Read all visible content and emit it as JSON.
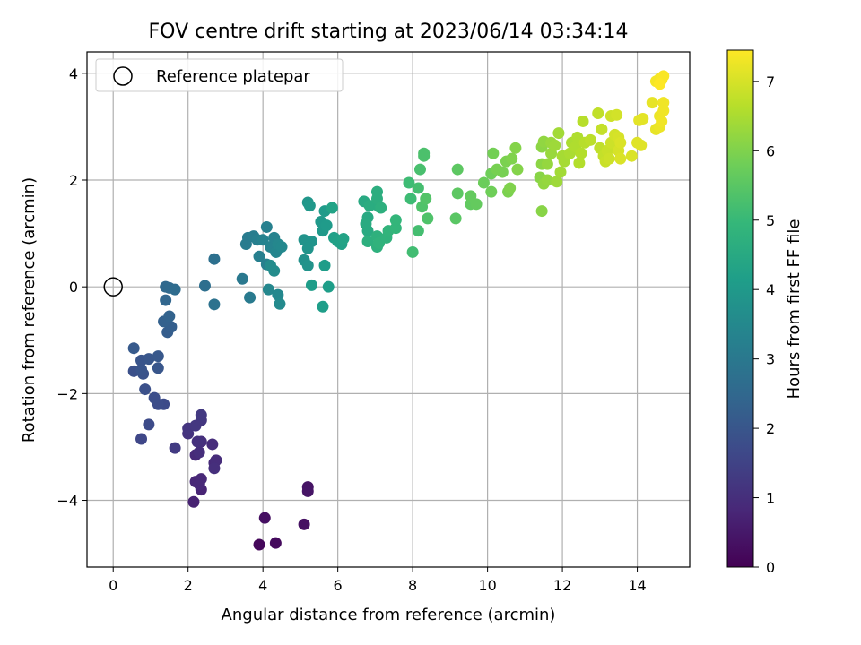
{
  "chart_data": {
    "type": "scatter",
    "title": "FOV centre drift starting at 2023/06/14 03:34:14",
    "xlabel": "Angular distance from reference (arcmin)",
    "ylabel": "Rotation from reference (arcmin)",
    "xlim": [
      -0.7,
      15.4
    ],
    "ylim": [
      -5.25,
      4.4
    ],
    "xticks": [
      0,
      2,
      4,
      6,
      8,
      10,
      12,
      14
    ],
    "yticks": [
      -4,
      -2,
      0,
      2,
      4
    ],
    "grid": true,
    "legend": {
      "position": "top-left",
      "entries": [
        "Reference platepar"
      ]
    },
    "reference_point": {
      "x": 0,
      "y": 0
    },
    "colorbar": {
      "label": "Hours from first FF file",
      "range": [
        0,
        7.45
      ],
      "ticks": [
        0,
        1,
        2,
        3,
        4,
        5,
        6,
        7
      ],
      "colormap": "viridis",
      "colors": [
        "#440154",
        "#482878",
        "#3e4989",
        "#31688e",
        "#26828e",
        "#1f9e89",
        "#35b779",
        "#6ece58",
        "#b5de2b",
        "#fde725"
      ]
    },
    "points": [
      [
        3.9,
        -4.83,
        0.15
      ],
      [
        4.34,
        -4.8,
        0.2
      ],
      [
        4.05,
        -4.33,
        0.3
      ],
      [
        5.1,
        -4.45,
        0.35
      ],
      [
        5.2,
        -3.75,
        0.4
      ],
      [
        5.2,
        -3.83,
        0.42
      ],
      [
        2.15,
        -4.03,
        0.7
      ],
      [
        2.35,
        -3.8,
        0.75
      ],
      [
        2.2,
        -3.65,
        0.8
      ],
      [
        2.3,
        -3.7,
        0.82
      ],
      [
        2.35,
        -3.6,
        0.85
      ],
      [
        2.2,
        -3.15,
        0.9
      ],
      [
        2.3,
        -3.1,
        1.0
      ],
      [
        2.35,
        -2.9,
        1.0
      ],
      [
        2.25,
        -2.9,
        1.05
      ],
      [
        2.65,
        -2.95,
        0.95
      ],
      [
        2.7,
        -3.3,
        0.9
      ],
      [
        2.75,
        -3.25,
        0.95
      ],
      [
        2.7,
        -3.4,
        1.0
      ],
      [
        2.0,
        -2.75,
        1.1
      ],
      [
        2.0,
        -2.65,
        1.15
      ],
      [
        2.2,
        -2.6,
        1.2
      ],
      [
        2.35,
        -2.5,
        1.2
      ],
      [
        2.35,
        -2.4,
        1.25
      ],
      [
        1.65,
        -3.02,
        1.3
      ],
      [
        0.75,
        -2.85,
        1.6
      ],
      [
        0.95,
        -2.58,
        1.7
      ],
      [
        1.35,
        -2.2,
        1.7
      ],
      [
        1.2,
        -2.2,
        1.75
      ],
      [
        1.1,
        -2.08,
        1.8
      ],
      [
        0.85,
        -1.92,
        1.85
      ],
      [
        0.55,
        -1.58,
        1.85
      ],
      [
        0.8,
        -1.63,
        1.9
      ],
      [
        0.75,
        -1.55,
        1.95
      ],
      [
        0.75,
        -1.38,
        1.95
      ],
      [
        0.95,
        -1.35,
        2.0
      ],
      [
        1.2,
        -1.52,
        2.0
      ],
      [
        1.2,
        -1.3,
        2.05
      ],
      [
        0.55,
        -1.15,
        2.1
      ],
      [
        1.45,
        -0.85,
        2.2
      ],
      [
        1.55,
        -0.75,
        2.25
      ],
      [
        1.35,
        -0.65,
        2.3
      ],
      [
        1.5,
        -0.55,
        2.35
      ],
      [
        1.4,
        -0.25,
        2.45
      ],
      [
        1.4,
        0.0,
        2.5
      ],
      [
        1.5,
        -0.02,
        2.55
      ],
      [
        1.65,
        -0.05,
        2.6
      ],
      [
        2.45,
        0.02,
        2.7
      ],
      [
        2.7,
        -0.33,
        2.8
      ],
      [
        2.7,
        0.52,
        2.75
      ],
      [
        3.45,
        0.15,
        3.0
      ],
      [
        3.65,
        -0.2,
        3.05
      ],
      [
        3.55,
        0.8,
        3.1
      ],
      [
        3.6,
        0.92,
        3.1
      ],
      [
        3.75,
        0.95,
        3.15
      ],
      [
        3.85,
        0.88,
        3.2
      ],
      [
        3.9,
        0.57,
        3.2
      ],
      [
        4.1,
        0.42,
        3.25
      ],
      [
        4.1,
        1.12,
        3.25
      ],
      [
        4.0,
        0.88,
        3.3
      ],
      [
        4.2,
        0.75,
        3.35
      ],
      [
        4.3,
        0.92,
        3.35
      ],
      [
        4.35,
        0.65,
        3.4
      ],
      [
        4.4,
        0.8,
        3.45
      ],
      [
        4.5,
        0.75,
        3.5
      ],
      [
        4.15,
        -0.05,
        3.45
      ],
      [
        4.4,
        -0.15,
        3.5
      ],
      [
        4.45,
        -0.32,
        3.55
      ],
      [
        4.3,
        0.3,
        3.6
      ],
      [
        4.2,
        0.4,
        3.6
      ],
      [
        5.1,
        0.5,
        3.75
      ],
      [
        5.2,
        0.4,
        3.8
      ],
      [
        5.1,
        0.88,
        3.8
      ],
      [
        5.3,
        0.85,
        3.85
      ],
      [
        5.2,
        0.72,
        3.85
      ],
      [
        5.2,
        1.58,
        3.9
      ],
      [
        5.25,
        1.52,
        3.95
      ],
      [
        5.55,
        1.22,
        4.0
      ],
      [
        5.6,
        1.05,
        4.0
      ],
      [
        5.7,
        1.15,
        4.05
      ],
      [
        5.65,
        1.42,
        4.05
      ],
      [
        5.65,
        0.4,
        4.1
      ],
      [
        5.3,
        0.03,
        4.1
      ],
      [
        5.6,
        -0.37,
        4.15
      ],
      [
        5.75,
        0.0,
        4.15
      ],
      [
        5.9,
        0.92,
        4.2
      ],
      [
        6.0,
        0.85,
        4.25
      ],
      [
        6.1,
        0.8,
        4.25
      ],
      [
        6.15,
        0.9,
        4.3
      ],
      [
        5.85,
        1.48,
        4.3
      ],
      [
        6.7,
        1.6,
        4.5
      ],
      [
        6.8,
        1.3,
        4.5
      ],
      [
        6.75,
        1.18,
        4.55
      ],
      [
        6.8,
        1.05,
        4.55
      ],
      [
        6.85,
        1.52,
        4.6
      ],
      [
        7.1,
        1.5,
        4.6
      ],
      [
        7.05,
        1.78,
        4.65
      ],
      [
        7.05,
        1.65,
        4.65
      ],
      [
        7.15,
        1.48,
        4.7
      ],
      [
        6.8,
        0.85,
        4.7
      ],
      [
        7.05,
        0.75,
        4.75
      ],
      [
        7.05,
        0.95,
        4.75
      ],
      [
        7.1,
        0.82,
        4.8
      ],
      [
        7.3,
        0.92,
        4.8
      ],
      [
        7.35,
        1.05,
        4.85
      ],
      [
        7.55,
        1.1,
        4.9
      ],
      [
        7.55,
        1.25,
        4.9
      ],
      [
        7.9,
        1.95,
        5.1
      ],
      [
        7.95,
        1.65,
        5.1
      ],
      [
        8.0,
        0.65,
        5.15
      ],
      [
        8.15,
        1.05,
        5.2
      ],
      [
        8.15,
        1.85,
        5.2
      ],
      [
        8.2,
        2.2,
        5.25
      ],
      [
        8.3,
        2.45,
        5.3
      ],
      [
        8.3,
        2.5,
        5.3
      ],
      [
        8.25,
        1.5,
        5.35
      ],
      [
        8.4,
        1.28,
        5.35
      ],
      [
        8.35,
        1.65,
        5.4
      ],
      [
        9.15,
        1.28,
        5.5
      ],
      [
        9.2,
        1.75,
        5.55
      ],
      [
        9.2,
        2.2,
        5.55
      ],
      [
        9.55,
        1.55,
        5.6
      ],
      [
        9.55,
        1.7,
        5.65
      ],
      [
        9.7,
        1.55,
        5.65
      ],
      [
        9.9,
        1.95,
        5.75
      ],
      [
        10.1,
        1.78,
        5.8
      ],
      [
        10.1,
        2.12,
        5.8
      ],
      [
        10.15,
        2.5,
        5.85
      ],
      [
        10.25,
        2.2,
        5.9
      ],
      [
        10.4,
        2.15,
        5.9
      ],
      [
        10.5,
        2.35,
        5.95
      ],
      [
        10.55,
        1.78,
        5.95
      ],
      [
        10.6,
        1.85,
        6.0
      ],
      [
        10.65,
        2.4,
        6.0
      ],
      [
        10.75,
        2.6,
        6.05
      ],
      [
        10.8,
        2.2,
        6.05
      ],
      [
        11.4,
        2.05,
        6.1
      ],
      [
        11.45,
        2.3,
        6.15
      ],
      [
        11.45,
        2.62,
        6.15
      ],
      [
        11.5,
        2.72,
        6.2
      ],
      [
        11.45,
        1.42,
        6.1
      ],
      [
        11.5,
        1.93,
        6.2
      ],
      [
        11.6,
        2.0,
        6.25
      ],
      [
        11.6,
        2.3,
        6.25
      ],
      [
        11.7,
        2.5,
        6.3
      ],
      [
        11.7,
        2.7,
        6.3
      ],
      [
        11.8,
        2.65,
        6.35
      ],
      [
        11.85,
        1.97,
        6.35
      ],
      [
        11.9,
        2.88,
        6.4
      ],
      [
        11.95,
        2.15,
        6.4
      ],
      [
        12.0,
        2.45,
        6.45
      ],
      [
        12.05,
        2.35,
        6.45
      ],
      [
        12.2,
        2.5,
        6.5
      ],
      [
        12.25,
        2.7,
        6.5
      ],
      [
        12.35,
        2.62,
        6.55
      ],
      [
        12.4,
        2.8,
        6.55
      ],
      [
        12.45,
        2.32,
        6.6
      ],
      [
        12.5,
        2.5,
        6.6
      ],
      [
        12.55,
        3.1,
        6.65
      ],
      [
        12.6,
        2.7,
        6.65
      ],
      [
        12.75,
        2.75,
        6.7
      ],
      [
        12.95,
        3.25,
        6.75
      ],
      [
        13.0,
        2.6,
        6.75
      ],
      [
        13.05,
        2.95,
        6.8
      ],
      [
        13.1,
        2.45,
        6.8
      ],
      [
        13.15,
        2.35,
        6.85
      ],
      [
        13.2,
        2.55,
        6.85
      ],
      [
        13.25,
        2.4,
        6.9
      ],
      [
        13.3,
        2.7,
        6.9
      ],
      [
        13.3,
        3.2,
        6.9
      ],
      [
        13.4,
        2.85,
        6.95
      ],
      [
        13.45,
        3.22,
        6.95
      ],
      [
        13.5,
        2.8,
        7.0
      ],
      [
        13.5,
        2.55,
        7.0
      ],
      [
        13.55,
        2.4,
        7.05
      ],
      [
        13.55,
        2.7,
        7.05
      ],
      [
        13.85,
        2.45,
        7.05
      ],
      [
        14.0,
        2.7,
        7.1
      ],
      [
        14.1,
        2.65,
        7.1
      ],
      [
        14.15,
        3.15,
        7.15
      ],
      [
        14.05,
        3.12,
        7.15
      ],
      [
        14.4,
        3.45,
        7.2
      ],
      [
        14.5,
        2.95,
        7.2
      ],
      [
        14.6,
        3.0,
        7.25
      ],
      [
        14.6,
        3.2,
        7.25
      ],
      [
        14.65,
        3.1,
        7.3
      ],
      [
        14.7,
        3.3,
        7.3
      ],
      [
        14.7,
        3.45,
        7.3
      ],
      [
        14.5,
        3.85,
        7.35
      ],
      [
        14.6,
        3.9,
        7.35
      ],
      [
        14.65,
        3.88,
        7.4
      ],
      [
        14.7,
        3.95,
        7.4
      ],
      [
        14.6,
        3.8,
        7.45
      ]
    ]
  }
}
